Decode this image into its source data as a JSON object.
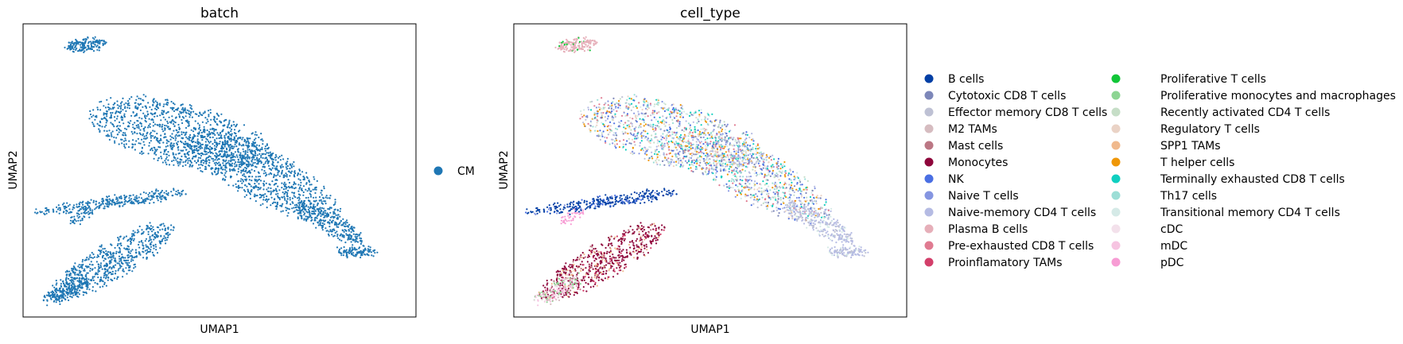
{
  "chart_data": [
    {
      "type": "scatter",
      "title": "batch",
      "xlabel": "UMAP1",
      "ylabel": "UMAP2",
      "grid": false,
      "ticks": false,
      "legend": {
        "placement": "right",
        "columns": 1
      },
      "series": [
        {
          "name": "CM",
          "color": "#1f77b4"
        }
      ]
    },
    {
      "type": "scatter",
      "title": "cell_type",
      "xlabel": "UMAP1",
      "ylabel": "UMAP2",
      "grid": false,
      "ticks": false,
      "legend": {
        "placement": "right",
        "columns": 2
      },
      "series": [
        {
          "name": "B cells",
          "color": "#023fa5"
        },
        {
          "name": "Cytotoxic CD8 T cells",
          "color": "#7d87b9"
        },
        {
          "name": "Effector memory CD8 T cells",
          "color": "#bec1d4"
        },
        {
          "name": "M2 TAMs",
          "color": "#d6bcc0"
        },
        {
          "name": "Mast cells",
          "color": "#bb7784"
        },
        {
          "name": "Monocytes",
          "color": "#8e063b"
        },
        {
          "name": "NK",
          "color": "#4a6fe3"
        },
        {
          "name": "Naive T cells",
          "color": "#8595e1"
        },
        {
          "name": "Naive-memory CD4 T cells",
          "color": "#b5bbe3"
        },
        {
          "name": "Plasma B cells",
          "color": "#e6afb9"
        },
        {
          "name": "Pre-exhausted CD8 T cells",
          "color": "#e07b91"
        },
        {
          "name": "Proinflamatory TAMs",
          "color": "#d33f6a"
        },
        {
          "name": "Proliferative T cells",
          "color": "#11c638"
        },
        {
          "name": "Proliferative monocytes and macrophages",
          "color": "#8dd593"
        },
        {
          "name": "Recently activated CD4 T cells",
          "color": "#c6dec7"
        },
        {
          "name": "Regulatory T cells",
          "color": "#ead3c6"
        },
        {
          "name": "SPP1 TAMs",
          "color": "#f0b98d"
        },
        {
          "name": "T helper cells",
          "color": "#ef9708"
        },
        {
          "name": "Terminally exhausted CD8 T cells",
          "color": "#0fcfc0"
        },
        {
          "name": "Th17 cells",
          "color": "#9cded6"
        },
        {
          "name": "Transitional memory CD4 T cells",
          "color": "#d5eae7"
        },
        {
          "name": "cDC",
          "color": "#f3e1eb"
        },
        {
          "name": "mDC",
          "color": "#f6c4e1"
        },
        {
          "name": "pDC",
          "color": "#f79cd4"
        }
      ]
    }
  ]
}
